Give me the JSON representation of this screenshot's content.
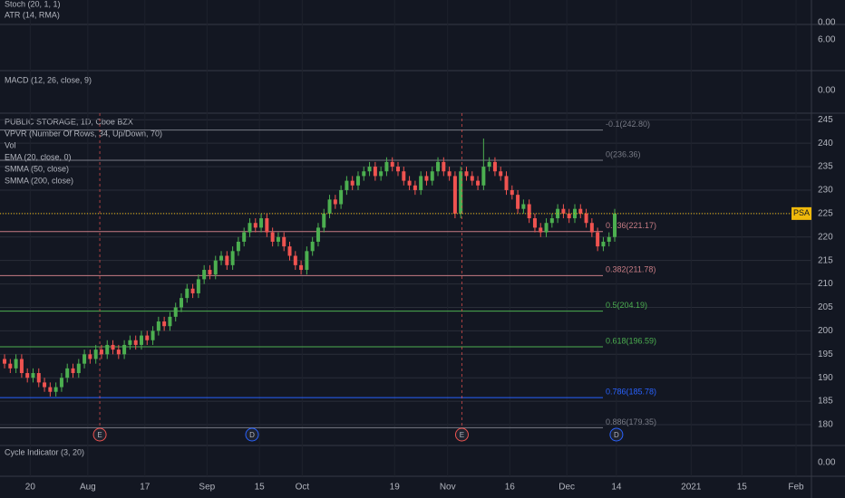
{
  "chart_data": {
    "type": "candlestick",
    "title": "PUBLIC STORAGE, 1D, Cboe BZX",
    "legend": [
      "VPVR (Number Of Rows, 34, Up/Down, 70)",
      "Vol",
      "EMA (20, close, 0)",
      "SMMA (50, close)",
      "SMMA (200, close)"
    ],
    "up_color": "#4caf50",
    "down_color": "#ef5350",
    "open": [
      194,
      193,
      192,
      194,
      191,
      190,
      191,
      189,
      188,
      187,
      188,
      190,
      192,
      191,
      193,
      195,
      194,
      196,
      195,
      197,
      196,
      195,
      197,
      198,
      197,
      199,
      198,
      200,
      202,
      201,
      203,
      205,
      207,
      209,
      208,
      211,
      213,
      212,
      215,
      216,
      214,
      217,
      219,
      221,
      223,
      222,
      224,
      221,
      219,
      220,
      218,
      216,
      214,
      213,
      217,
      219,
      222,
      225,
      228,
      227,
      230,
      232,
      231,
      233,
      234,
      235,
      233,
      234,
      236,
      235,
      234,
      232,
      231,
      230,
      233,
      232,
      234,
      236,
      234,
      233,
      225,
      234,
      233,
      232,
      231,
      235,
      236,
      234,
      233,
      230,
      229,
      226,
      227,
      224,
      222,
      221,
      223,
      224,
      226,
      225,
      224,
      226,
      225,
      223,
      221,
      218,
      219,
      220
    ],
    "high": [
      195,
      194,
      195,
      195,
      192,
      192,
      192,
      190,
      189,
      189,
      191,
      193,
      193,
      194,
      196,
      196,
      197,
      197,
      198,
      198,
      197,
      198,
      199,
      199,
      200,
      200,
      201,
      203,
      203,
      204,
      206,
      208,
      210,
      210,
      212,
      214,
      214,
      216,
      217,
      217,
      218,
      220,
      222,
      224,
      224,
      225,
      225,
      222,
      221,
      221,
      219,
      217,
      215,
      218,
      220,
      223,
      226,
      229,
      229,
      231,
      233,
      233,
      234,
      235,
      236,
      236,
      235,
      237,
      237,
      236,
      235,
      233,
      232,
      234,
      234,
      235,
      237,
      237,
      235,
      234,
      235,
      235,
      234,
      233,
      241,
      237,
      237,
      235,
      234,
      231,
      230,
      228,
      228,
      225,
      223,
      224,
      225,
      227,
      227,
      226,
      227,
      227,
      226,
      224,
      222,
      220,
      221,
      226
    ],
    "low": [
      192,
      191,
      191,
      190,
      189,
      189,
      188,
      187,
      186,
      186,
      187,
      189,
      190,
      190,
      192,
      193,
      193,
      194,
      194,
      195,
      194,
      194,
      196,
      196,
      196,
      197,
      197,
      199,
      200,
      200,
      202,
      204,
      206,
      207,
      207,
      210,
      211,
      211,
      214,
      213,
      213,
      216,
      218,
      220,
      221,
      221,
      220,
      218,
      218,
      217,
      215,
      213,
      212,
      212,
      216,
      218,
      221,
      224,
      226,
      226,
      229,
      230,
      230,
      232,
      233,
      232,
      232,
      233,
      234,
      233,
      231,
      230,
      229,
      229,
      231,
      231,
      233,
      233,
      232,
      224,
      224,
      232,
      231,
      230,
      230,
      234,
      233,
      232,
      229,
      228,
      225,
      225,
      223,
      221,
      220,
      220,
      222,
      223,
      224,
      223,
      223,
      224,
      222,
      220,
      217,
      217,
      218,
      219
    ],
    "close": [
      193,
      192,
      194,
      191,
      190,
      191,
      189,
      188,
      187,
      188,
      190,
      192,
      191,
      193,
      195,
      194,
      196,
      195,
      197,
      196,
      195,
      197,
      198,
      197,
      199,
      198,
      200,
      202,
      201,
      203,
      205,
      207,
      209,
      208,
      211,
      213,
      212,
      215,
      216,
      214,
      217,
      219,
      221,
      223,
      222,
      224,
      221,
      219,
      220,
      218,
      216,
      214,
      213,
      217,
      219,
      222,
      225,
      228,
      227,
      230,
      232,
      231,
      233,
      234,
      235,
      233,
      234,
      236,
      235,
      234,
      232,
      231,
      230,
      233,
      232,
      234,
      236,
      234,
      233,
      225,
      234,
      233,
      232,
      231,
      235,
      236,
      234,
      233,
      230,
      229,
      226,
      227,
      224,
      222,
      221,
      223,
      224,
      226,
      225,
      224,
      226,
      225,
      223,
      221,
      218,
      219,
      220,
      225
    ],
    "last_label": "PSA",
    "ylim": [
      177.3,
      246.4
    ],
    "yticks": [
      180,
      185,
      190,
      195,
      200,
      205,
      210,
      215,
      220,
      225,
      230,
      235,
      240,
      245
    ],
    "xlim": [
      -0.8,
      141.5
    ],
    "xticks": [
      {
        "value": 4.5,
        "label": "20"
      },
      {
        "value": 14.6,
        "label": "Aug"
      },
      {
        "value": 24.6,
        "label": "17"
      },
      {
        "value": 35.5,
        "label": "Sep"
      },
      {
        "value": 44.7,
        "label": "15"
      },
      {
        "value": 52.2,
        "label": "Oct"
      },
      {
        "value": 68.4,
        "label": "19"
      },
      {
        "value": 77.7,
        "label": "Nov"
      },
      {
        "value": 88.6,
        "label": "16"
      },
      {
        "value": 98.6,
        "label": "Dec"
      },
      {
        "value": 107.3,
        "label": "14"
      },
      {
        "value": 120.4,
        "label": "2021"
      },
      {
        "value": 129.3,
        "label": "15"
      },
      {
        "value": 138.8,
        "label": "Feb"
      }
    ],
    "fib_levels": [
      {
        "label": "-0.1(242.80)",
        "value": 242.8,
        "color": "#787b86"
      },
      {
        "label": "0(236.36)",
        "value": 236.36,
        "color": "#787b86"
      },
      {
        "label": "0.236(221.17)",
        "value": 221.17,
        "color": "#c77c84"
      },
      {
        "label": "0.382(211.78)",
        "value": 211.78,
        "color": "#c77c84"
      },
      {
        "label": "0.5(204.19)",
        "value": 204.19,
        "color": "#4caf50"
      },
      {
        "label": "0.618(196.59)",
        "value": 196.59,
        "color": "#4caf50"
      },
      {
        "label": "0.786(185.78)",
        "value": 185.78,
        "color": "#2962ff"
      },
      {
        "label": "0.886(179.35)",
        "value": 179.35,
        "color": "#787b86"
      }
    ],
    "events": [
      {
        "label": "E",
        "x": 16.7
      },
      {
        "label": "D",
        "x": 43.4
      },
      {
        "label": "E",
        "x": 80.2
      },
      {
        "label": "D",
        "x": 107.3
      }
    ],
    "indicator_panes": [
      {
        "title": "Stoch (20, 1, 1)",
        "ticks": [
          {
            "value": 0,
            "label": "0.00"
          }
        ]
      },
      {
        "title": "ATR (14, RMA)",
        "ticks": [
          {
            "value": 6,
            "label": "6.00"
          }
        ]
      },
      {
        "title": "MACD (12, 26, close, 9)",
        "ticks": [
          {
            "value": 0,
            "label": "0.00"
          }
        ]
      },
      {
        "title": "Cycle Indicator (3, 20)",
        "ticks": [
          {
            "value": 0,
            "label": "0.00"
          }
        ]
      }
    ]
  }
}
